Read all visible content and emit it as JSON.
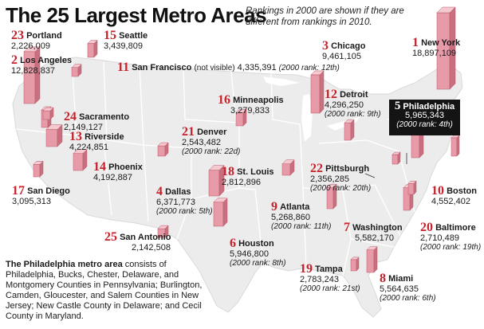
{
  "title": "The 25 Largest Metro Areas",
  "note": "Rankings in 2000 are shown if they are different from rankings in 2010.",
  "footnote": {
    "lead": "The Philadelphia metro area",
    "text": " consists of Philadelphia, Bucks, Chester, Delaware, and Montgomery Counties in Pennsylvania; Burlington, Camden, Gloucester, and Salem Counties in New Jersey; New Castle County in Delaware; and Cecil County in Maryland."
  },
  "colors": {
    "land": "#ececec",
    "border": "#ffffff",
    "bar_front": "#e79aa7",
    "bar_side": "#c9707f",
    "bar_top": "#f6c8d0",
    "rank": "#c6202a",
    "callout": "#141414"
  },
  "metros": [
    {
      "rank": "1",
      "name": "New York",
      "population": "18,897,109",
      "rank_2000": ""
    },
    {
      "rank": "2",
      "name": "Los Angeles",
      "population": "12,828,837",
      "rank_2000": ""
    },
    {
      "rank": "3",
      "name": "Chicago",
      "population": "9,461,105",
      "rank_2000": ""
    },
    {
      "rank": "4",
      "name": "Dallas",
      "population": "6,371,773",
      "rank_2000": "(2000 rank: 5th)"
    },
    {
      "rank": "5",
      "name": "Philadelphia",
      "population": "5,965,343",
      "rank_2000": "(2000 rank: 4th)"
    },
    {
      "rank": "6",
      "name": "Houston",
      "population": "5,946,800",
      "rank_2000": "(2000 rank: 8th)"
    },
    {
      "rank": "7",
      "name": "Washington",
      "population": "5,582,170",
      "rank_2000": ""
    },
    {
      "rank": "8",
      "name": "Miami",
      "population": "5,564,635",
      "rank_2000": "(2000 rank: 6th)"
    },
    {
      "rank": "9",
      "name": "Atlanta",
      "population": "5,268,860",
      "rank_2000": "(2000 rank: 11th)"
    },
    {
      "rank": "10",
      "name": "Boston",
      "population": "4,552,402",
      "rank_2000": ""
    },
    {
      "rank": "11",
      "name": "San Francisco",
      "note": "(not visible)",
      "population": "4,335,391",
      "rank_2000": "(2000 rank: 12th)"
    },
    {
      "rank": "12",
      "name": "Detroit",
      "population": "4,296,250",
      "rank_2000": "(2000 rank: 9th)"
    },
    {
      "rank": "13",
      "name": "Riverside",
      "population": "4,224,851",
      "rank_2000": ""
    },
    {
      "rank": "14",
      "name": "Phoenix",
      "population": "4,192,887",
      "rank_2000": ""
    },
    {
      "rank": "15",
      "name": "Seattle",
      "population": "3,439,809",
      "rank_2000": ""
    },
    {
      "rank": "16",
      "name": "Minneapolis",
      "population": "3,279,833",
      "rank_2000": ""
    },
    {
      "rank": "17",
      "name": "San Diego",
      "population": "3,095,313",
      "rank_2000": ""
    },
    {
      "rank": "18",
      "name": "St. Louis",
      "population": "2,812,896",
      "rank_2000": ""
    },
    {
      "rank": "19",
      "name": "Tampa",
      "population": "2,783,243",
      "rank_2000": "(2000 rank: 21st)"
    },
    {
      "rank": "20",
      "name": "Baltimore",
      "population": "2,710,489",
      "rank_2000": "(2000 rank: 19th)"
    },
    {
      "rank": "21",
      "name": "Denver",
      "population": "2,543,482",
      "rank_2000": "(2000 rank: 22d)"
    },
    {
      "rank": "22",
      "name": "Pittsburgh",
      "population": "2,356,285",
      "rank_2000": "(2000 rank: 20th)"
    },
    {
      "rank": "23",
      "name": "Portland",
      "population": "2,226,009",
      "rank_2000": ""
    },
    {
      "rank": "24",
      "name": "Sacramento",
      "population": "2,149,127",
      "rank_2000": ""
    },
    {
      "rank": "25",
      "name": "San Antonio",
      "population": "2,142,508",
      "rank_2000": ""
    }
  ]
}
